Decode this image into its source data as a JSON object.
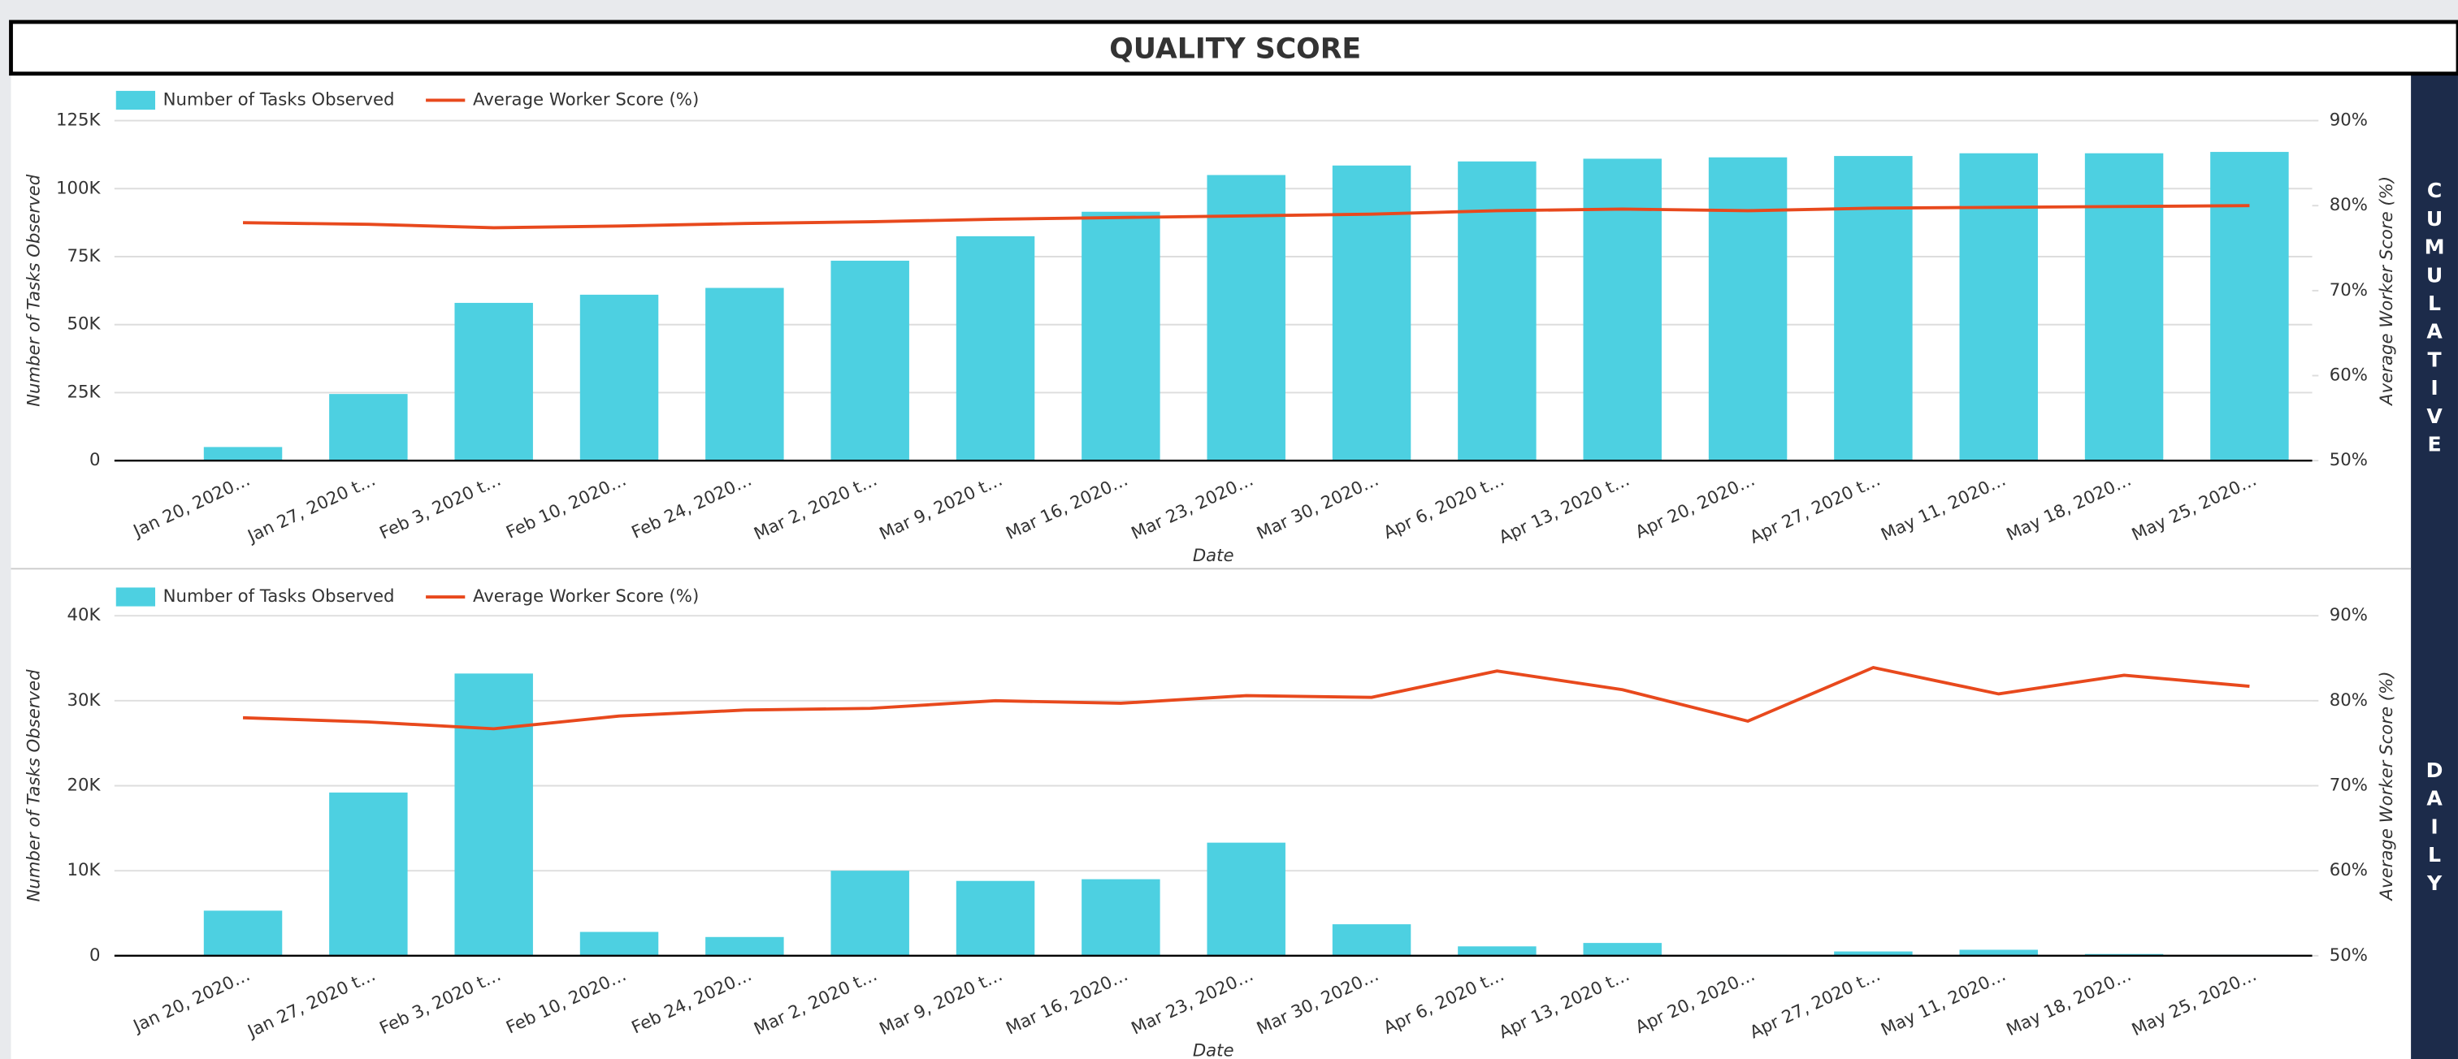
{
  "title": "QUALITY SCORE",
  "side_labels": [
    "CUMULATIVE",
    "DAILY"
  ],
  "chart_data": [
    {
      "type": "bar",
      "x_label": "Date",
      "y_label": "Number of Tasks Observed",
      "y2_label": "Average Worker Score (%)",
      "legend": "top-left",
      "grid": true,
      "categories": [
        "Jan 20, 2020…",
        "Jan 27, 2020 t…",
        "Feb 3, 2020 t…",
        "Feb 10, 2020…",
        "Feb 24, 2020…",
        "Mar 2, 2020 t…",
        "Mar 9, 2020 t…",
        "Mar 16, 2020…",
        "Mar 23, 2020…",
        "Mar 30, 2020…",
        "Apr 6, 2020 t…",
        "Apr 13, 2020 t…",
        "Apr 20, 2020…",
        "Apr 27, 2020 t…",
        "May 11, 2020…",
        "May 18, 2020…",
        "May 25, 2020…"
      ],
      "series": [
        {
          "name": "Number of Tasks Observed",
          "color": "#4dd0e1",
          "values": [
            5000,
            24500,
            58000,
            61000,
            63500,
            73500,
            82500,
            91500,
            105000,
            108500,
            110000,
            111000,
            111500,
            112000,
            113000,
            113000,
            113500
          ]
        },
        {
          "name": "Average Worker Score (%)",
          "color": "#e8491d",
          "type": "line",
          "axis": "y2",
          "values": [
            78.0,
            77.8,
            77.4,
            77.6,
            77.9,
            78.1,
            78.4,
            78.6,
            78.8,
            79.0,
            79.4,
            79.6,
            79.4,
            79.7,
            79.8,
            79.9,
            80.0
          ]
        }
      ],
      "ylim": [
        0,
        125000
      ],
      "yticks": [
        0,
        {
          "value": 25000,
          "label": "25K"
        },
        {
          "value": 50000,
          "label": "50K"
        },
        {
          "value": 75000,
          "label": "75K"
        },
        {
          "value": 100000,
          "label": "100K"
        },
        {
          "value": 125000,
          "label": "125K"
        }
      ],
      "y2lim": [
        50,
        90
      ],
      "y2ticks": [
        {
          "value": 50,
          "label": "50%"
        },
        {
          "value": 60,
          "label": "60%"
        },
        {
          "value": 70,
          "label": "70%"
        },
        {
          "value": 80,
          "label": "80%"
        },
        {
          "value": 90,
          "label": "90%"
        }
      ]
    },
    {
      "type": "bar",
      "x_label": "Date",
      "y_label": "Number of Tasks Observed",
      "y2_label": "Average Worker Score (%)",
      "legend": "top-left",
      "grid": true,
      "categories": [
        "Jan 20, 2020…",
        "Jan 27, 2020 t…",
        "Feb 3, 2020 t…",
        "Feb 10, 2020…",
        "Feb 24, 2020…",
        "Mar 2, 2020 t…",
        "Mar 9, 2020 t…",
        "Mar 16, 2020…",
        "Mar 23, 2020…",
        "Mar 30, 2020…",
        "Apr 6, 2020 t…",
        "Apr 13, 2020 t…",
        "Apr 20, 2020…",
        "Apr 27, 2020 t…",
        "May 11, 2020…",
        "May 18, 2020…",
        "May 25, 2020…"
      ],
      "series": [
        {
          "name": "Number of Tasks Observed",
          "color": "#4dd0e1",
          "values": [
            5300,
            19200,
            33200,
            2800,
            2200,
            10000,
            8800,
            9000,
            13300,
            3700,
            1100,
            1500,
            100,
            500,
            700,
            200,
            100
          ]
        },
        {
          "name": "Average Worker Score (%)",
          "color": "#e8491d",
          "type": "line",
          "axis": "y2",
          "values": [
            78.0,
            77.5,
            76.7,
            78.2,
            78.9,
            79.1,
            80.0,
            79.7,
            80.6,
            80.4,
            83.5,
            81.3,
            77.6,
            83.9,
            80.8,
            83.0,
            81.7
          ]
        }
      ],
      "ylim": [
        0,
        40000
      ],
      "yticks": [
        0,
        {
          "value": 10000,
          "label": "10K"
        },
        {
          "value": 20000,
          "label": "20K"
        },
        {
          "value": 30000,
          "label": "30K"
        },
        {
          "value": 40000,
          "label": "40K"
        }
      ],
      "y2lim": [
        50,
        90
      ],
      "y2ticks": [
        {
          "value": 50,
          "label": "50%"
        },
        {
          "value": 60,
          "label": "60%"
        },
        {
          "value": 70,
          "label": "70%"
        },
        {
          "value": 80,
          "label": "80%"
        },
        {
          "value": 90,
          "label": "90%"
        }
      ]
    }
  ]
}
